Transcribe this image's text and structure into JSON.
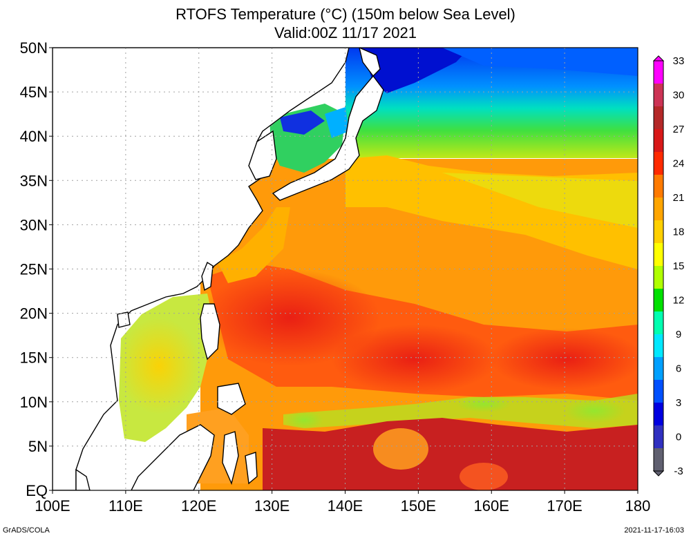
{
  "title": "RTOFS Temperature (°C) (150m below Sea Level)",
  "subtitle": "Valid:00Z 11/17 2021",
  "credit_left": "GrADS/COLA",
  "credit_right": "2021-11-17-16:03",
  "map": {
    "lon_range": [
      100,
      180
    ],
    "lat_range": [
      0,
      50
    ],
    "grid": true,
    "y_ticks": [
      {
        "lat": 50,
        "label": "50N"
      },
      {
        "lat": 45,
        "label": "45N"
      },
      {
        "lat": 40,
        "label": "40N"
      },
      {
        "lat": 35,
        "label": "35N"
      },
      {
        "lat": 30,
        "label": "30N"
      },
      {
        "lat": 25,
        "label": "25N"
      },
      {
        "lat": 20,
        "label": "20N"
      },
      {
        "lat": 15,
        "label": "15N"
      },
      {
        "lat": 10,
        "label": "10N"
      },
      {
        "lat": 5,
        "label": "5N"
      },
      {
        "lat": 0,
        "label": "EQ"
      }
    ],
    "x_ticks": [
      {
        "lon": 100,
        "label": "100E"
      },
      {
        "lon": 110,
        "label": "110E"
      },
      {
        "lon": 120,
        "label": "120E"
      },
      {
        "lon": 130,
        "label": "130E"
      },
      {
        "lon": 140,
        "label": "140E"
      },
      {
        "lon": 150,
        "label": "150E"
      },
      {
        "lon": 160,
        "label": "160E"
      },
      {
        "lon": 170,
        "label": "170E"
      },
      {
        "lon": 180,
        "label": "180"
      }
    ]
  },
  "colorbar": {
    "labels": [
      "33",
      "30",
      "27",
      "24",
      "21",
      "18",
      "15",
      "12",
      "9",
      "6",
      "3",
      "0",
      "-3"
    ],
    "values": [
      33,
      30,
      27,
      24,
      21,
      18,
      15,
      12,
      9,
      6,
      3,
      0,
      -3
    ],
    "colors": [
      "#ff00ff",
      "#cc3355",
      "#b42828",
      "#d81818",
      "#ff2a00",
      "#ff7a00",
      "#ffa500",
      "#ffd000",
      "#ffff00",
      "#b0ff00",
      "#00e000",
      "#00ffb0",
      "#00e8ff",
      "#00a0ff",
      "#0050ff",
      "#0000e0",
      "#3030c0",
      "#606070"
    ]
  }
}
